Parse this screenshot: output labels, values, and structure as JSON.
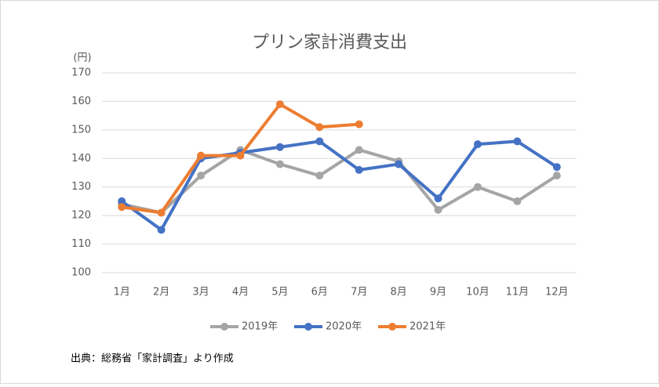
{
  "chart_data": {
    "type": "line",
    "title": "プリン家計消費支出",
    "y_unit": "(円)",
    "categories": [
      "1月",
      "2月",
      "3月",
      "4月",
      "5月",
      "6月",
      "7月",
      "8月",
      "9月",
      "10月",
      "11月",
      "12月"
    ],
    "series": [
      {
        "name": "2019年",
        "color": "#a5a5a5",
        "values": [
          124,
          121,
          134,
          143,
          138,
          134,
          143,
          139,
          122,
          130,
          125,
          134
        ]
      },
      {
        "name": "2020年",
        "color": "#4472c4",
        "values": [
          125,
          115,
          140,
          142,
          144,
          146,
          136,
          138,
          126,
          145,
          146,
          137
        ]
      },
      {
        "name": "2021年",
        "color": "#ed7d31",
        "values": [
          123,
          121,
          141,
          141,
          159,
          151,
          152,
          null,
          null,
          null,
          null,
          null
        ]
      }
    ],
    "ylim": [
      100,
      170
    ],
    "yticks": [
      100,
      110,
      120,
      130,
      140,
      150,
      160,
      170
    ],
    "grid": true,
    "legend": "bottom",
    "source": "出典：総務省「家計調査」より作成"
  }
}
